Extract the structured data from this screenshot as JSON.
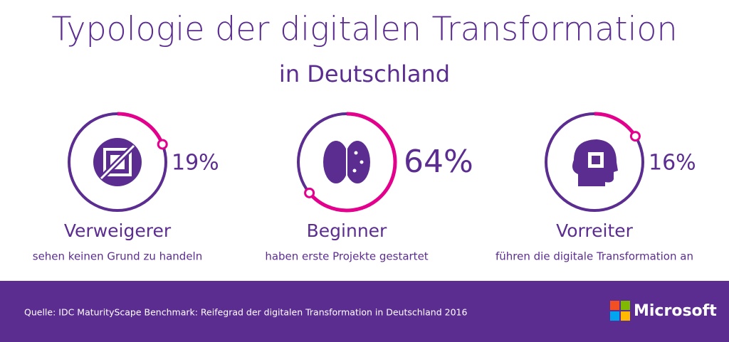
{
  "chart_data": {
    "type": "ring",
    "title": "Typologie der digitalen Transformation",
    "subtitle": "in Deutschland",
    "categories": [
      "Verweigerer",
      "Beginner",
      "Vorreiter"
    ],
    "descriptions": [
      "sehen keinen Grund zu handeln",
      "haben erste Projekte gestartet",
      "führen die digitale Transformation an"
    ],
    "values": [
      19,
      64,
      16
    ],
    "value_labels": [
      "19%",
      "64%",
      "16%"
    ],
    "color": "#e3008c",
    "track_color": "#5c2d91"
  },
  "footer": {
    "source": "Quelle: IDC MaturityScape Benchmark: Reifegrad der digitalen Transformation in Deutschland 2016",
    "brand": "Microsoft"
  }
}
